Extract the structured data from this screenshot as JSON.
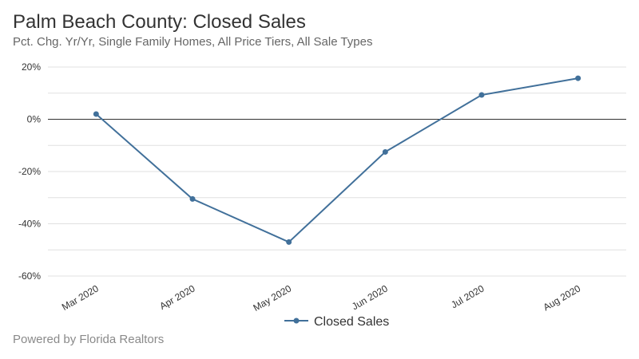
{
  "header": {
    "title": "Palm Beach County: Closed Sales",
    "subtitle": "Pct. Chg. Yr/Yr, Single Family Homes, All Price Tiers, All Sale Types"
  },
  "footer": {
    "credit": "Powered by Florida Realtors"
  },
  "colors": {
    "series": "#41709a",
    "grid": "#e0e0e0",
    "zero_line": "#333333"
  },
  "chart_data": {
    "type": "line",
    "categories": [
      "Mar 2020",
      "Apr 2020",
      "May 2020",
      "Jun 2020",
      "Jul 2020",
      "Aug 2020"
    ],
    "series": [
      {
        "name": "Closed Sales",
        "values": [
          2,
          -30.5,
          -47,
          -12.5,
          9.3,
          15.7
        ]
      }
    ],
    "y_ticks": [
      20,
      0,
      -20,
      -40,
      -60
    ],
    "y_tick_labels": [
      "20%",
      "0%",
      "-20%",
      "-40%",
      "-60%"
    ],
    "ylim": [
      -60,
      20
    ],
    "grid": true,
    "legend": "bottom-center"
  }
}
